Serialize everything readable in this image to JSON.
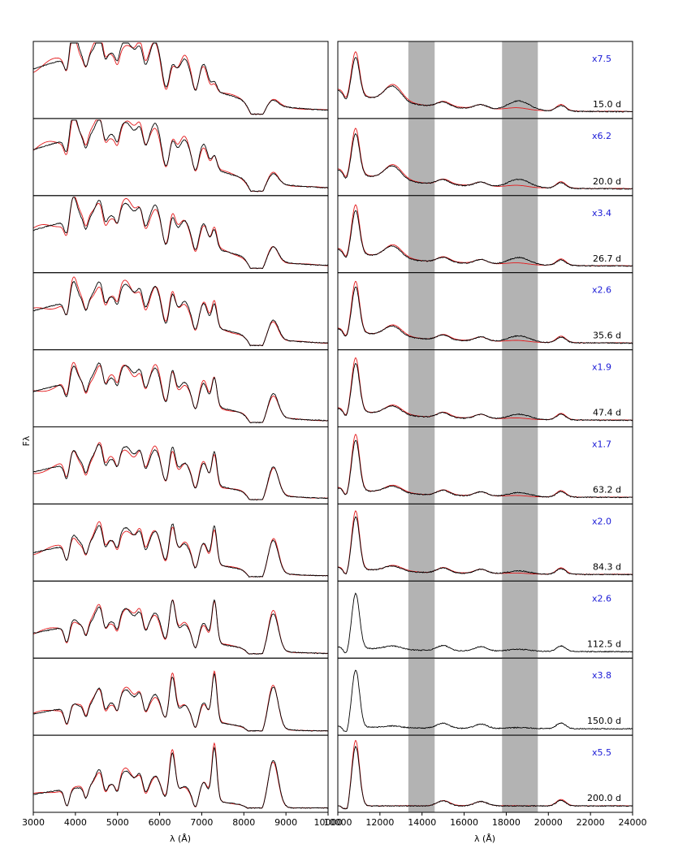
{
  "chart_data": {
    "type": "line",
    "title": "",
    "ylabel": "Fλ",
    "colors": {
      "observed": "#000000",
      "model": "#e41a1c",
      "scale_text": "#1f1fd0",
      "telluric_band": "#b3b3b3"
    },
    "left_panel": {
      "xlabel": "λ (Å)",
      "xlim": [
        3000,
        10000
      ],
      "xticks": [
        "3000",
        "4000",
        "5000",
        "6000",
        "7000",
        "8000",
        "9000",
        "10000"
      ]
    },
    "right_panel": {
      "xlabel": "λ (Å)",
      "xlim": [
        10000,
        24000
      ],
      "xticks": [
        "10000",
        "12000",
        "14000",
        "16000",
        "18000",
        "20000",
        "22000",
        "24000"
      ],
      "shaded_bands": [
        [
          13350,
          14600
        ],
        [
          17800,
          19500
        ]
      ]
    },
    "epochs": [
      {
        "epoch": "15.0 d",
        "scale": "x7.5",
        "nir_model": true
      },
      {
        "epoch": "20.0 d",
        "scale": "x6.2",
        "nir_model": true
      },
      {
        "epoch": "26.7 d",
        "scale": "x3.4",
        "nir_model": true
      },
      {
        "epoch": "35.6 d",
        "scale": "x2.6",
        "nir_model": true
      },
      {
        "epoch": "47.4 d",
        "scale": "x1.9",
        "nir_model": true
      },
      {
        "epoch": "63.2 d",
        "scale": "x1.7",
        "nir_model": true
      },
      {
        "epoch": "84.3 d",
        "scale": "x2.0",
        "nir_model": true
      },
      {
        "epoch": "112.5 d",
        "scale": "x2.6",
        "nir_model": false
      },
      {
        "epoch": "150.0 d",
        "scale": "x3.8",
        "nir_model": false
      },
      {
        "epoch": "200.0 d",
        "scale": "x5.5",
        "nir_model": true
      }
    ]
  }
}
